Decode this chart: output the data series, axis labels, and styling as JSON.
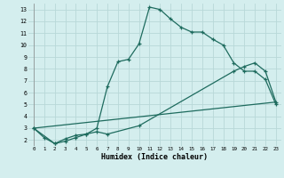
{
  "xlabel": "Humidex (Indice chaleur)",
  "background_color": "#d4eeee",
  "line_color": "#1e6b5e",
  "grid_color": "#b8d8d8",
  "xlim": [
    -0.5,
    23.5
  ],
  "ylim": [
    1.5,
    13.5
  ],
  "xticks": [
    0,
    1,
    2,
    3,
    4,
    5,
    6,
    7,
    8,
    9,
    10,
    11,
    12,
    13,
    14,
    15,
    16,
    17,
    18,
    19,
    20,
    21,
    22,
    23
  ],
  "yticks": [
    2,
    3,
    4,
    5,
    6,
    7,
    8,
    9,
    10,
    11,
    12,
    13
  ],
  "curve1_x": [
    0,
    1,
    2,
    3,
    4,
    5,
    6,
    7,
    8,
    9,
    10,
    11,
    12,
    13,
    14,
    15,
    16,
    17,
    18,
    19,
    20,
    21,
    22,
    23
  ],
  "curve1_y": [
    3.0,
    2.2,
    1.7,
    1.9,
    2.2,
    2.5,
    3.0,
    6.5,
    8.6,
    8.8,
    10.1,
    13.2,
    13.0,
    12.2,
    11.5,
    11.1,
    11.1,
    10.5,
    10.0,
    8.5,
    7.8,
    7.8,
    7.1,
    5.0
  ],
  "curve2_x": [
    0,
    2,
    3,
    4,
    5,
    6,
    7,
    10,
    19,
    20,
    21,
    22,
    23
  ],
  "curve2_y": [
    3.0,
    1.7,
    2.1,
    2.4,
    2.5,
    2.7,
    2.5,
    3.2,
    7.8,
    8.2,
    8.5,
    7.8,
    5.2
  ],
  "curve3_x": [
    0,
    23
  ],
  "curve3_y": [
    3.0,
    5.2
  ]
}
